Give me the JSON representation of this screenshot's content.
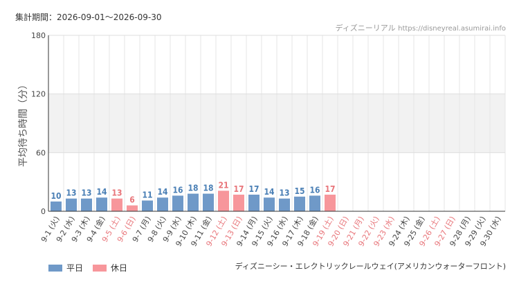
{
  "header": {
    "period": "集計期間：2026-09-01～2026-09-30",
    "site_name": "ディズニーリアル",
    "site_url": "https://disneyreal.asumirai.info"
  },
  "legend": {
    "weekday_label": "平日",
    "holiday_label": "休日"
  },
  "colors": {
    "weekday": "#6f99c8",
    "holiday": "#f7969b",
    "weekday_text": "#4a7fb5",
    "holiday_text": "#e8757a",
    "band": "#f2f2f2"
  },
  "footer": {
    "attraction": "ディズニーシー・エレクトリックレールウェイ(アメリカンウォーターフロント)"
  },
  "chart_data": {
    "type": "bar",
    "ylabel": "平均待ち時間（分）",
    "ylim": [
      0,
      180
    ],
    "yticks": [
      0,
      60,
      120,
      180
    ],
    "grid": true,
    "legend_position": "bottom-left",
    "categories": [
      "9-1 (火)",
      "9-2 (水)",
      "9-3 (木)",
      "9-4 (金)",
      "9-5 (土)",
      "9-6 (日)",
      "9-7 (月)",
      "9-8 (火)",
      "9-9 (水)",
      "9-10 (木)",
      "9-11 (金)",
      "9-12 (土)",
      "9-13 (日)",
      "9-14 (月)",
      "9-15 (火)",
      "9-16 (水)",
      "9-17 (木)",
      "9-18 (金)",
      "9-19 (土)",
      "9-20 (日)",
      "9-21 (月)",
      "9-22 (火)",
      "9-23 (水)",
      "9-24 (木)",
      "9-25 (金)",
      "9-26 (土)",
      "9-27 (日)",
      "9-28 (月)",
      "9-29 (火)",
      "9-30 (水)"
    ],
    "values": [
      10,
      13,
      13,
      14,
      13,
      6,
      11,
      14,
      16,
      18,
      18,
      21,
      17,
      17,
      14,
      13,
      15,
      16,
      17,
      null,
      null,
      null,
      null,
      null,
      null,
      null,
      null,
      null,
      null,
      null
    ],
    "holiday": [
      false,
      false,
      false,
      false,
      true,
      true,
      false,
      false,
      false,
      false,
      false,
      true,
      true,
      false,
      false,
      false,
      false,
      false,
      true,
      true,
      true,
      true,
      true,
      false,
      false,
      true,
      true,
      false,
      false,
      false
    ]
  }
}
